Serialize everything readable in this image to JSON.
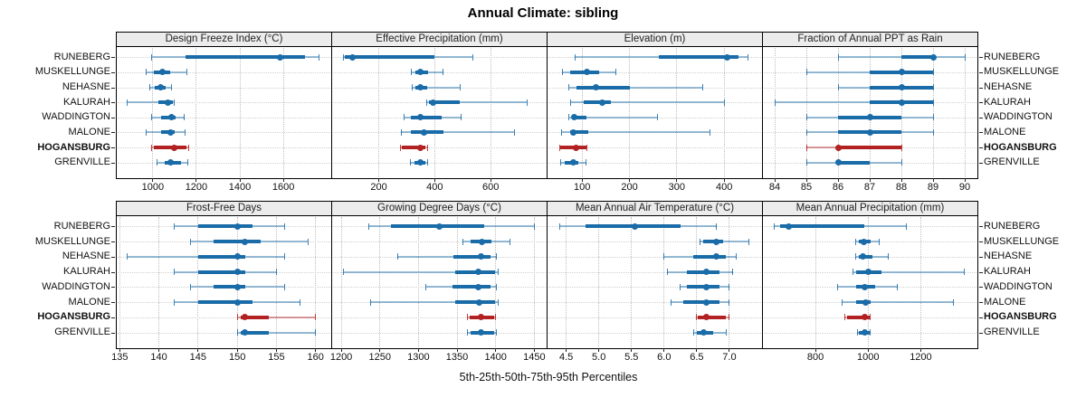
{
  "page": {
    "title": "Annual Climate: sibling",
    "caption": "5th-25th-50th-75th-95th Percentiles"
  },
  "chart_data": {
    "type": "dotplot",
    "title": "Annual Climate: sibling",
    "caption": "5th-25th-50th-75th-95th Percentiles",
    "grid_layout": {
      "rows": 2,
      "cols": 4
    },
    "grid": "dotted",
    "legend_position": "none",
    "percentiles": [
      5,
      25,
      50,
      75,
      95
    ],
    "sites": [
      "RUNEBERG",
      "MUSKELLUNGE",
      "NEHASNE",
      "KALURAH",
      "WADDINGTON",
      "MALONE",
      "HOGANSBURG",
      "GRENVILLE"
    ],
    "site_labels_sides": [
      "left",
      "right"
    ],
    "highlight_site": "HOGANSBURG",
    "colors": {
      "series": "#1a6ca8",
      "highlight": "#b22222",
      "panel_header_bg": "#ececec",
      "panel_border": "#000000",
      "gridline": "#c8c8c8",
      "text": "#111111"
    },
    "panels": [
      {
        "title": "Design Freeze Index (°C)",
        "xlim": [
          830,
          1820
        ],
        "ticks": [
          1000,
          1200,
          1400,
          1600
        ],
        "tick_labels": [
          "1000",
          "1200",
          "1400",
          "1600"
        ],
        "values": [
          [
            995,
            1150,
            1585,
            1700,
            1765
          ],
          [
            970,
            1005,
            1045,
            1080,
            1155
          ],
          [
            985,
            1010,
            1035,
            1060,
            1085
          ],
          [
            880,
            1025,
            1070,
            1090,
            1100
          ],
          [
            995,
            1040,
            1085,
            1105,
            1145
          ],
          [
            970,
            1040,
            1080,
            1100,
            1150
          ],
          [
            995,
            1005,
            1100,
            1155,
            1165
          ],
          [
            1020,
            1055,
            1080,
            1130,
            1160
          ]
        ]
      },
      {
        "title": "Effective Precipitation (mm)",
        "xlim": [
          30,
          800
        ],
        "ticks": [
          200,
          400,
          600
        ],
        "tick_labels": [
          "200",
          "400",
          "600"
        ],
        "values": [
          [
            75,
            80,
            105,
            400,
            535
          ],
          [
            315,
            330,
            350,
            375,
            430
          ],
          [
            320,
            330,
            350,
            372,
            490
          ],
          [
            370,
            380,
            395,
            490,
            730
          ],
          [
            290,
            315,
            350,
            425,
            495
          ],
          [
            280,
            315,
            360,
            430,
            685
          ],
          [
            277,
            283,
            348,
            368,
            376
          ],
          [
            313,
            328,
            350,
            368,
            376
          ]
        ]
      },
      {
        "title": "Elevation (m)",
        "xlim": [
          25,
          480
        ],
        "ticks": [
          100,
          200,
          300,
          400
        ],
        "tick_labels": [
          "100",
          "200",
          "300",
          "400"
        ],
        "values": [
          [
            85,
            262,
            406,
            430,
            450
          ],
          [
            58,
            75,
            110,
            135,
            172
          ],
          [
            72,
            88,
            130,
            200,
            355
          ],
          [
            75,
            104,
            142,
            160,
            400
          ],
          [
            72,
            78,
            84,
            110,
            260
          ],
          [
            56,
            75,
            82,
            113,
            370
          ],
          [
            52,
            54,
            88,
            109,
            111
          ],
          [
            54,
            64,
            82,
            92,
            109
          ]
        ]
      },
      {
        "title": "Fraction of Annual PPT as Rain",
        "xlim": [
          83.6,
          90.4
        ],
        "ticks": [
          84,
          85,
          86,
          87,
          88,
          89,
          90
        ],
        "tick_labels": [
          "84",
          "85",
          "86",
          "87",
          "88",
          "89",
          "90"
        ],
        "values": [
          [
            86,
            88,
            89,
            89,
            90
          ],
          [
            85,
            87,
            88,
            89,
            89
          ],
          [
            86,
            87,
            88,
            89,
            89
          ],
          [
            84,
            87,
            88,
            89,
            89
          ],
          [
            85,
            86,
            87,
            88,
            89
          ],
          [
            85,
            86,
            87,
            88,
            89
          ],
          [
            85,
            86,
            86,
            88,
            88
          ],
          [
            85,
            86,
            86,
            87,
            88
          ]
        ]
      },
      {
        "title": "Frost-Free Days",
        "xlim": [
          134.5,
          162
        ],
        "ticks": [
          135,
          140,
          145,
          150,
          155,
          160
        ],
        "tick_labels": [
          "135",
          "140",
          "145",
          "150",
          "155",
          "160"
        ],
        "values": [
          [
            142,
            145,
            150,
            152,
            156
          ],
          [
            144,
            147,
            151,
            153,
            159
          ],
          [
            136,
            145,
            150,
            151,
            156
          ],
          [
            142,
            145,
            150,
            151,
            155
          ],
          [
            144,
            147,
            150,
            151,
            156
          ],
          [
            142,
            145,
            150,
            152,
            158
          ],
          [
            150,
            150.5,
            151,
            154,
            160
          ],
          [
            150,
            150.5,
            151,
            154,
            160
          ]
        ]
      },
      {
        "title": "Growing Degree Days (°C)",
        "xlim": [
          1187,
          1466
        ],
        "ticks": [
          1200,
          1250,
          1300,
          1350,
          1400,
          1450
        ],
        "tick_labels": [
          "1200",
          "1250",
          "1300",
          "1350",
          "1400",
          "1450"
        ],
        "values": [
          [
            1236,
            1264,
            1327,
            1385,
            1450
          ],
          [
            1358,
            1368,
            1382,
            1395,
            1418
          ],
          [
            1273,
            1345,
            1381,
            1393,
            1401
          ],
          [
            1203,
            1348,
            1377,
            1399,
            1403
          ],
          [
            1309,
            1344,
            1377,
            1393,
            1401
          ],
          [
            1238,
            1348,
            1379,
            1399,
            1403
          ],
          [
            1363,
            1366,
            1381,
            1398,
            1400
          ],
          [
            1363,
            1368,
            1381,
            1398,
            1401
          ]
        ]
      },
      {
        "title": "Mean Annual Air Temperature (°C)",
        "xlim": [
          4.2,
          7.5
        ],
        "ticks": [
          4.5,
          5.0,
          5.5,
          6.0,
          6.5,
          7.0
        ],
        "tick_labels": [
          "4.5",
          "5.0",
          "5.5",
          "6.0",
          "6.5",
          "7.0"
        ],
        "values": [
          [
            4.4,
            4.8,
            5.55,
            6.25,
            6.8
          ],
          [
            6.55,
            6.6,
            6.8,
            6.9,
            7.3
          ],
          [
            6.0,
            6.45,
            6.8,
            6.95,
            7.1
          ],
          [
            6.05,
            6.35,
            6.65,
            6.85,
            7.05
          ],
          [
            6.25,
            6.35,
            6.65,
            6.85,
            7.0
          ],
          [
            6.1,
            6.3,
            6.65,
            6.85,
            7.0
          ],
          [
            6.5,
            6.52,
            6.65,
            6.95,
            7.0
          ],
          [
            6.45,
            6.5,
            6.6,
            6.75,
            6.95
          ]
        ]
      },
      {
        "title": "Mean Annual Precipitation (mm)",
        "xlim": [
          597,
          1415
        ],
        "ticks": [
          800,
          1000,
          1200
        ],
        "tick_labels": [
          "800",
          "1000",
          "1200"
        ],
        "values": [
          [
            645,
            665,
            700,
            985,
            1145
          ],
          [
            954,
            965,
            982,
            1010,
            1043
          ],
          [
            954,
            965,
            979,
            1017,
            1077
          ],
          [
            944,
            954,
            1000,
            1050,
            1364
          ],
          [
            885,
            954,
            986,
            1028,
            1112
          ],
          [
            900,
            954,
            990,
            1011,
            1323
          ],
          [
            913,
            920,
            988,
            1005,
            1009
          ],
          [
            959,
            965,
            986,
            1005,
            1009
          ]
        ]
      }
    ]
  }
}
